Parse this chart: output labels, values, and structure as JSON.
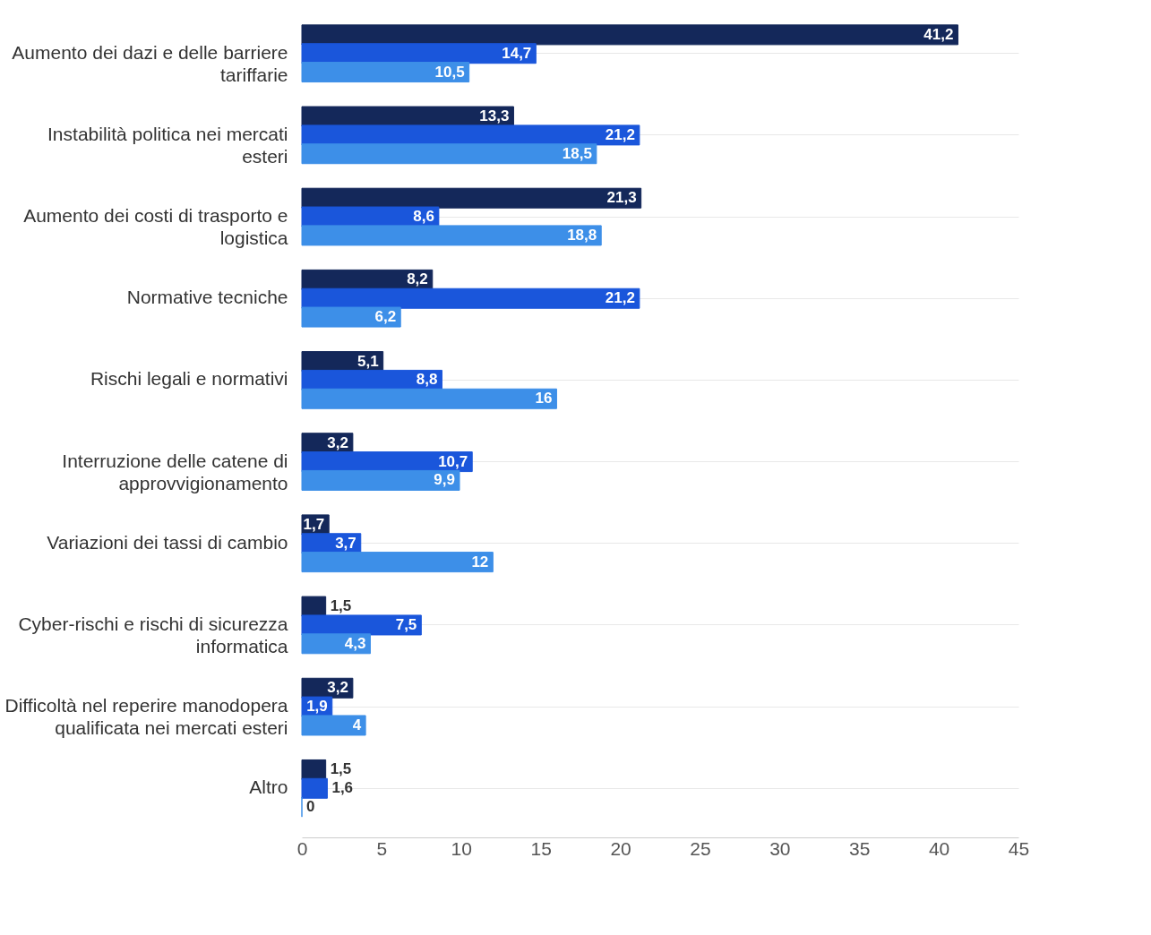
{
  "chart_data": {
    "type": "bar",
    "orientation": "horizontal",
    "categories": [
      "Aumento dei dazi e delle barriere tariffarie",
      "Instabilità politica nei mercati esteri",
      "Aumento dei costi di trasporto e logistica",
      "Normative tecniche",
      "Rischi legali e normativi",
      "Interruzione delle catene di approvvigionamento",
      "Variazioni dei tassi di cambio",
      "Cyber-rischi e rischi di sicurezza informatica",
      "Difficoltà nel reperire manodopera qualificata nei mercati esteri",
      "Altro"
    ],
    "series": [
      {
        "color": "#14285a",
        "values": [
          41.2,
          13.3,
          21.3,
          8.2,
          5.1,
          3.2,
          1.7,
          1.5,
          3.2,
          1.5
        ],
        "value_labels": [
          "41,2",
          "13,3",
          "21,3",
          "8,2",
          "5,1",
          "3,2",
          "1,7",
          "1,5",
          "3,2",
          "1,5"
        ]
      },
      {
        "color": "#1a56db",
        "values": [
          14.7,
          21.2,
          8.6,
          21.2,
          8.8,
          10.7,
          3.7,
          7.5,
          1.9,
          1.6
        ],
        "value_labels": [
          "14,7",
          "21,2",
          "8,6",
          "21,2",
          "8,8",
          "10,7",
          "3,7",
          "7,5",
          "1,9",
          "1,6"
        ]
      },
      {
        "color": "#3d8fe8",
        "values": [
          10.5,
          18.5,
          18.8,
          6.2,
          16,
          9.9,
          12,
          4.3,
          4,
          0
        ],
        "value_labels": [
          "10,5",
          "18,5",
          "18,8",
          "6,2",
          "16",
          "9,9",
          "12",
          "4,3",
          "4",
          "0"
        ]
      }
    ],
    "xlim": [
      0,
      45
    ],
    "xticks": [
      0,
      5,
      10,
      15,
      20,
      25,
      30,
      35,
      40,
      45
    ],
    "grid": "y"
  }
}
